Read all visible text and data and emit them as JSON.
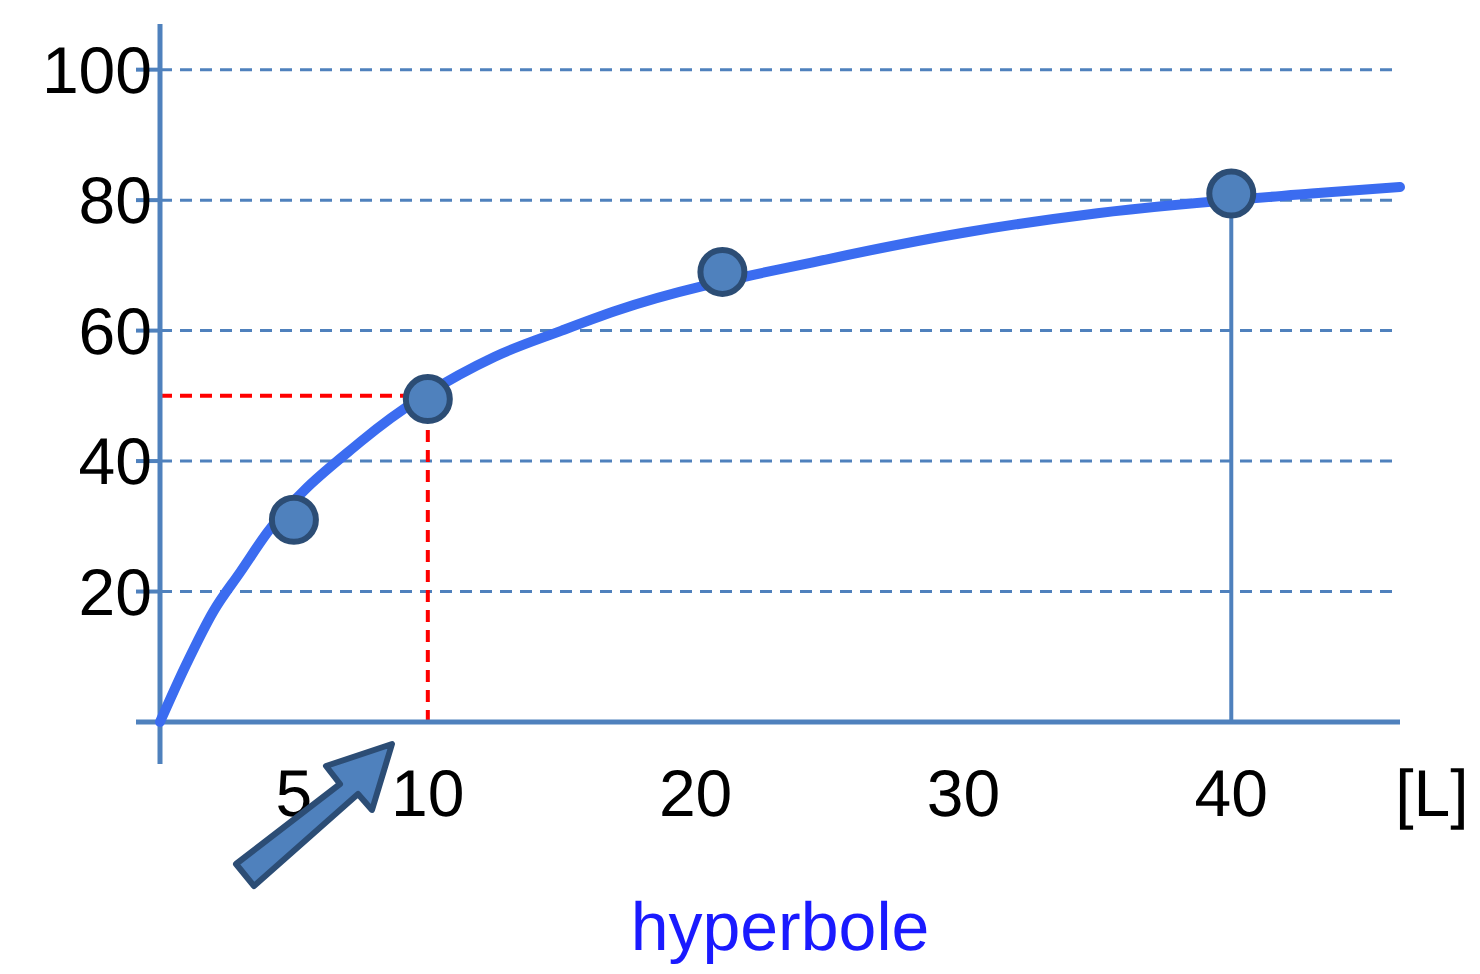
{
  "chart_data": {
    "type": "line",
    "xlabel": "[L]",
    "annotations": [
      "hyperbole"
    ],
    "xlim": [
      0,
      46.3
    ],
    "ylim": [
      0,
      107
    ],
    "xticks": [
      5,
      10,
      20,
      30,
      40
    ],
    "yticks": [
      {
        "value": 0,
        "label": null
      },
      20,
      40,
      60,
      80,
      100
    ],
    "grid": "y",
    "series": [
      {
        "color": "#3b6cf0",
        "marker": "none",
        "x": [
          0,
          1,
          2,
          3,
          4,
          7.5,
          12.5,
          15,
          17,
          25,
          30,
          35,
          43,
          46.3
        ],
        "values": [
          0,
          9,
          17,
          23,
          29,
          43,
          56,
          60,
          63,
          71,
          75,
          78,
          81,
          82
        ]
      },
      {
        "type": "scatter",
        "color": "#4f81bd",
        "marker": "circle",
        "x": [
          5,
          10,
          21,
          40
        ],
        "values": [
          31,
          49.5,
          69,
          81
        ]
      }
    ],
    "ref_lines": [
      {
        "axis": "x",
        "value": 10,
        "color": "#ff0000",
        "line_style": "dashed"
      },
      {
        "axis": "y",
        "value": 50,
        "color": "#ff0000",
        "line_style": "dashed"
      },
      {
        "axis": "x",
        "value": 40,
        "color": "#4f81bd",
        "line_style": "solid"
      }
    ]
  }
}
